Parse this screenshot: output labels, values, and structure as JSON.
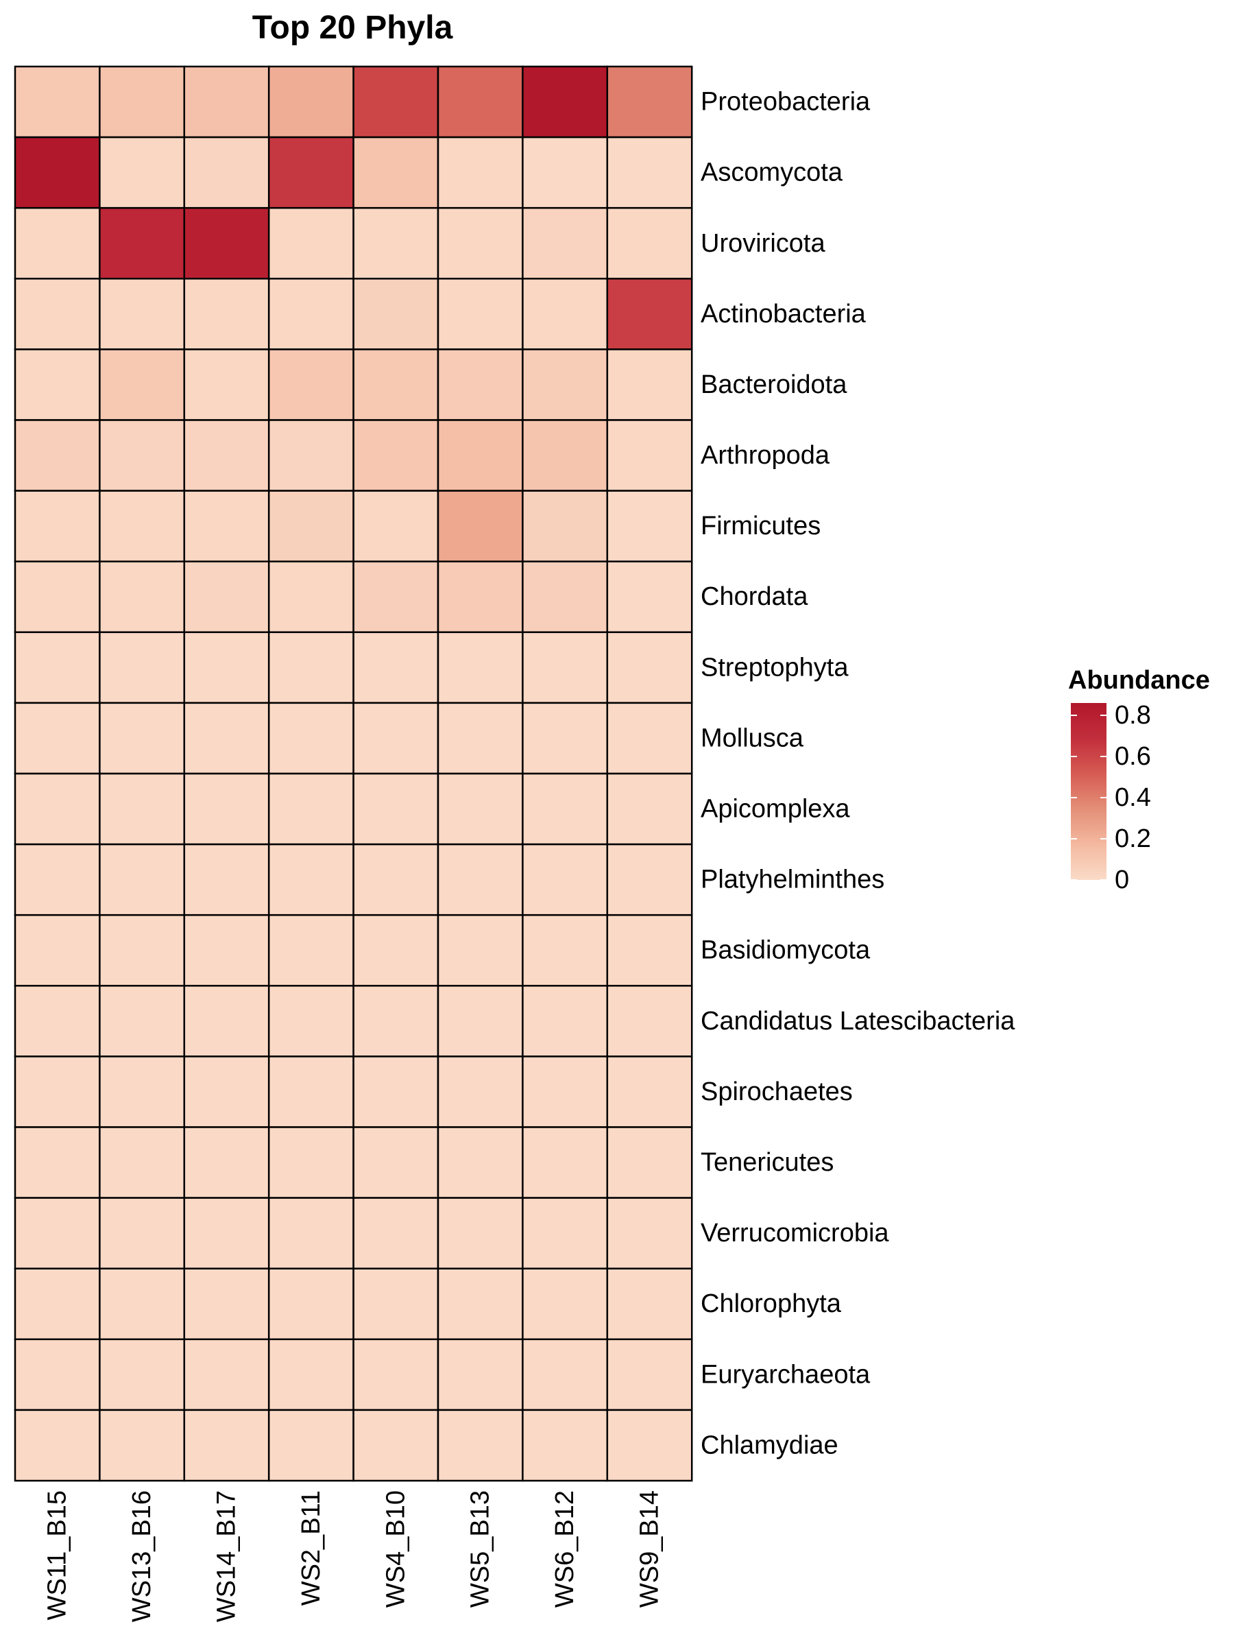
{
  "chart_data": {
    "type": "heatmap",
    "title": "Top 20 Phyla",
    "x": [
      "WS11_B15",
      "WS13_B16",
      "WS14_B17",
      "WS2_B11",
      "WS4_B10",
      "WS5_B13",
      "WS6_B12",
      "WS9_B14"
    ],
    "y": [
      "Proteobacteria",
      "Ascomycota",
      "Uroviricota",
      "Actinobacteria",
      "Bacteroidota",
      "Arthropoda",
      "Firmicutes",
      "Chordata",
      "Streptophyta",
      "Mollusca",
      "Apicomplexa",
      "Platyhelminthes",
      "Basidiomycota",
      "Candidatus Latescibacteria",
      "Spirochaetes",
      "Tenericutes",
      "Verrucomicrobia",
      "Chlorophyta",
      "Euryarchaeota",
      "Chlamydiae"
    ],
    "values": [
      [
        0.09,
        0.12,
        0.13,
        0.22,
        0.6,
        0.48,
        0.86,
        0.4
      ],
      [
        0.86,
        0.02,
        0.03,
        0.65,
        0.12,
        0.02,
        0.01,
        0.01
      ],
      [
        0.02,
        0.74,
        0.8,
        0.02,
        0.02,
        0.02,
        0.04,
        0.02
      ],
      [
        0.02,
        0.02,
        0.02,
        0.02,
        0.05,
        0.02,
        0.02,
        0.63
      ],
      [
        0.02,
        0.09,
        0.02,
        0.1,
        0.09,
        0.08,
        0.07,
        0.02
      ],
      [
        0.06,
        0.04,
        0.04,
        0.03,
        0.1,
        0.14,
        0.11,
        0.02
      ],
      [
        0.02,
        0.02,
        0.02,
        0.05,
        0.02,
        0.24,
        0.05,
        0.01
      ],
      [
        0.02,
        0.02,
        0.03,
        0.02,
        0.06,
        0.08,
        0.06,
        0.01
      ],
      [
        0.01,
        0.01,
        0.01,
        0.01,
        0.01,
        0.01,
        0.01,
        0.01
      ],
      [
        0.01,
        0.01,
        0.01,
        0.01,
        0.01,
        0.01,
        0.01,
        0.01
      ],
      [
        0.01,
        0.01,
        0.01,
        0.01,
        0.01,
        0.01,
        0.01,
        0.01
      ],
      [
        0.01,
        0.01,
        0.01,
        0.01,
        0.01,
        0.01,
        0.01,
        0.01
      ],
      [
        0.01,
        0.01,
        0.01,
        0.01,
        0.01,
        0.01,
        0.01,
        0.01
      ],
      [
        0.01,
        0.01,
        0.01,
        0.01,
        0.01,
        0.01,
        0.01,
        0.01
      ],
      [
        0.01,
        0.01,
        0.01,
        0.01,
        0.01,
        0.01,
        0.01,
        0.01
      ],
      [
        0.01,
        0.01,
        0.01,
        0.01,
        0.01,
        0.01,
        0.01,
        0.01
      ],
      [
        0.01,
        0.01,
        0.01,
        0.01,
        0.01,
        0.01,
        0.01,
        0.01
      ],
      [
        0.01,
        0.01,
        0.01,
        0.01,
        0.01,
        0.01,
        0.01,
        0.01
      ],
      [
        0.01,
        0.01,
        0.01,
        0.01,
        0.01,
        0.01,
        0.01,
        0.01
      ],
      [
        0.01,
        0.01,
        0.01,
        0.01,
        0.01,
        0.01,
        0.01,
        0.01
      ]
    ],
    "color_scale": {
      "title": "Abundance",
      "min": 0,
      "max": 0.86,
      "ticks": [
        0,
        0.2,
        0.4,
        0.6,
        0.8
      ],
      "tick_labels": [
        "0",
        "0.2",
        "0.4",
        "0.6",
        "0.8"
      ],
      "stops": [
        "#fadbc8",
        "#f4b9a0",
        "#e48f78",
        "#d65c53",
        "#c22e3c",
        "#b2182b"
      ]
    },
    "legend_position": "right",
    "grid": true,
    "cell_border_color": "#000000"
  }
}
